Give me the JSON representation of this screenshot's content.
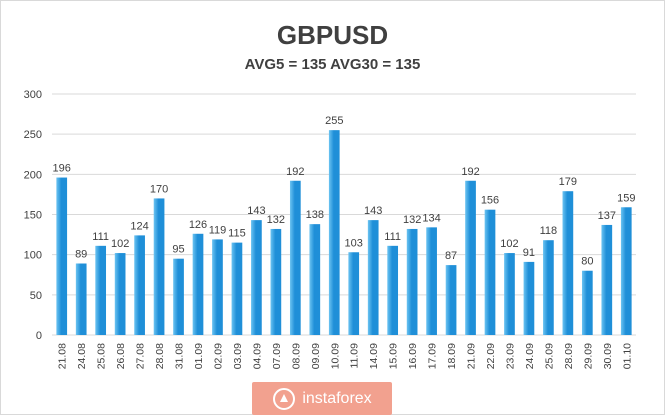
{
  "title": "GBPUSD",
  "subtitle": "AVG5 = 135 AVG30 = 135",
  "watermark": "instaforex",
  "colors": {
    "bar": "#1f8fd8",
    "bar_highlight": "#6cc4f2",
    "grid": "#d9d9d9",
    "axis_text": "#404040"
  },
  "chart_data": {
    "type": "bar",
    "title": "GBPUSD",
    "subtitle": "AVG5 = 135 AVG30 = 135",
    "xlabel": "",
    "ylabel": "",
    "ylim": [
      0,
      300
    ],
    "yticks": [
      0,
      50,
      100,
      150,
      200,
      250,
      300
    ],
    "grid": true,
    "legend": "none",
    "categories": [
      "21.08",
      "24.08",
      "25.08",
      "26.08",
      "27.08",
      "28.08",
      "31.08",
      "01.09",
      "02.09",
      "03.09",
      "04.09",
      "07.09",
      "08.09",
      "09.09",
      "10.09",
      "11.09",
      "14.09",
      "15.09",
      "16.09",
      "17.09",
      "18.09",
      "21.09",
      "22.09",
      "23.09",
      "24.09",
      "25.09",
      "28.09",
      "29.09",
      "30.09",
      "01.10"
    ],
    "values": [
      196,
      89,
      111,
      102,
      124,
      170,
      95,
      126,
      119,
      115,
      143,
      132,
      192,
      138,
      255,
      103,
      143,
      111,
      132,
      134,
      87,
      192,
      156,
      102,
      91,
      118,
      179,
      80,
      137,
      159
    ]
  }
}
